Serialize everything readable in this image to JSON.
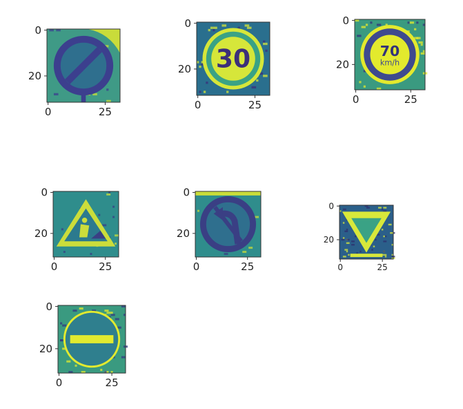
{
  "chart_data": [
    {
      "type": "image",
      "content": "restriction-end",
      "xticks": [
        "0",
        "25"
      ],
      "yticks": [
        "0",
        "20"
      ],
      "colors": {
        "bg": "#3f9a86",
        "accent": "#c9dc3a",
        "sign": "#2f6f8e",
        "dark": "#3c3f8e"
      }
    },
    {
      "type": "image",
      "content": "speed-limit",
      "sign_text": "30",
      "xticks": [
        "0",
        "25"
      ],
      "yticks": [
        "0",
        "20"
      ],
      "colors": {
        "bg": "#2a6f8e",
        "accent": "#d6e63a",
        "sign": "#3aa285",
        "dark": "#3b2f7a"
      }
    },
    {
      "type": "image",
      "content": "speed-limit",
      "sign_text": "70",
      "sign_subtext": "km/h",
      "xticks": [
        "0",
        "25"
      ],
      "yticks": [
        "0",
        "20"
      ],
      "colors": {
        "bg": "#3a9a80",
        "accent": "#e3ea2d",
        "sign": "#3e4a8e",
        "dark": "#33327a"
      }
    },
    {
      "type": "image",
      "content": "road-work",
      "xticks": [
        "0",
        "25"
      ],
      "yticks": [
        "0",
        "20"
      ],
      "colors": {
        "bg": "#2f8d8c",
        "accent": "#cbdd3b",
        "sign": "#2c7a8e",
        "dark": "#3a3f84"
      }
    },
    {
      "type": "image",
      "content": "no-left-turn",
      "xticks": [
        "0",
        "25"
      ],
      "yticks": [
        "0",
        "20"
      ],
      "colors": {
        "bg": "#2f8d8c",
        "accent": "#c9dc3a",
        "sign": "#2f6f8e",
        "dark": "#3a3f84"
      }
    },
    {
      "type": "image",
      "content": "yield",
      "xticks": [
        "0",
        "25"
      ],
      "yticks": [
        "0",
        "20"
      ],
      "colors": {
        "bg": "#2b5f8a",
        "accent": "#d8e83b",
        "sign": "#3aa285",
        "dark": "#2e2f6d"
      }
    },
    {
      "type": "image",
      "content": "no-entry",
      "xticks": [
        "0",
        "25"
      ],
      "yticks": [
        "0",
        "20"
      ],
      "colors": {
        "bg": "#3a9a80",
        "accent": "#e2ea2f",
        "sign": "#2f7f8e",
        "dark": "#333a82"
      }
    }
  ]
}
